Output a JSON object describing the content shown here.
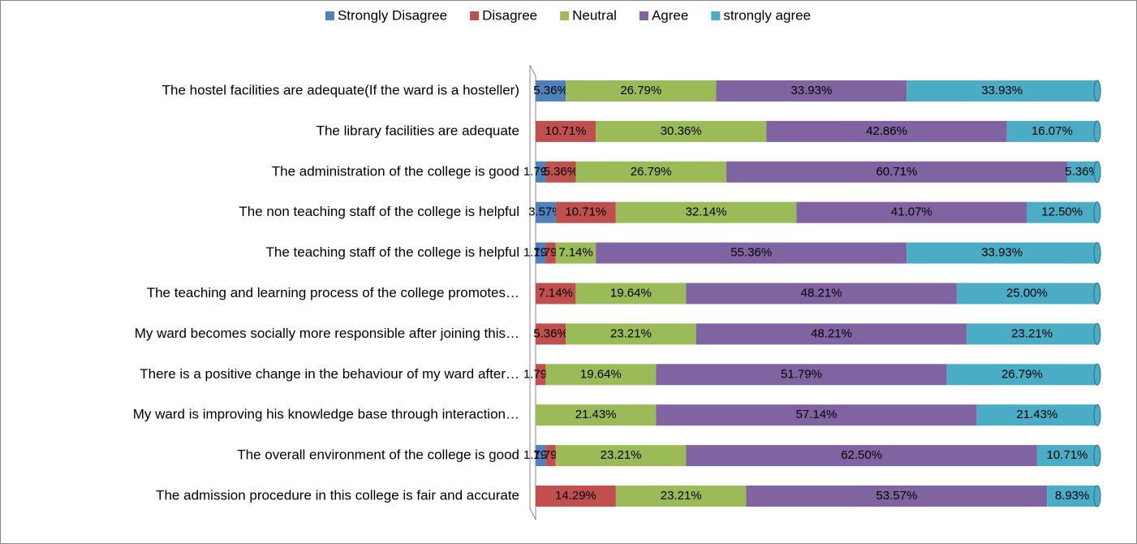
{
  "chart_data": {
    "type": "stacked_barh",
    "categories": [
      "The hostel facilities are adequate(If the ward is a hosteller)",
      "The library facilities are adequate",
      "The administration of the college is good",
      "The non teaching staff of the college is helpful",
      "The teaching staff of the college is helpful",
      "The teaching and learning process of the college promotes…",
      "My ward becomes socially more responsible after joining this…",
      "There is a positive change in the behaviour of my ward after…",
      "My ward is improving his knowledge base through interaction…",
      "The overall environment of the college is good",
      "The admission procedure in this college is fair and accurate"
    ],
    "xlim": [
      0,
      100
    ],
    "legend": "top",
    "series": [
      {
        "name": "Strongly Disagree",
        "color": "#4f81bd",
        "values": [
          5.36,
          null,
          1.79,
          3.57,
          1.79,
          null,
          null,
          null,
          null,
          1.79,
          null
        ],
        "value_labels": [
          "5.36%",
          null,
          "1.79%",
          "3.57%",
          "1.79%",
          null,
          null,
          null,
          null,
          "1.79%",
          null
        ]
      },
      {
        "name": "Disagree",
        "color": "#c0504d",
        "values": [
          null,
          10.71,
          5.36,
          10.71,
          1.79,
          7.14,
          5.36,
          1.79,
          null,
          1.79,
          14.29
        ],
        "value_labels": [
          null,
          "10.71%",
          "5.36%",
          "10.71%",
          "1.79%",
          "7.14%",
          "5.36%",
          "1.79%",
          null,
          "1.79%",
          "14.29%"
        ]
      },
      {
        "name": "Neutral",
        "color": "#9bbb59",
        "values": [
          26.79,
          30.36,
          26.79,
          32.14,
          7.14,
          19.64,
          23.21,
          19.64,
          21.43,
          23.21,
          23.21
        ],
        "value_labels": [
          "26.79%",
          "30.36%",
          "26.79%",
          "32.14%",
          "7.14%",
          "19.64%",
          "23.21%",
          "19.64%",
          "21.43%",
          "23.21%",
          "23.21%"
        ]
      },
      {
        "name": "Agree",
        "color": "#8064a2",
        "values": [
          33.93,
          42.86,
          60.71,
          41.07,
          55.36,
          48.21,
          48.21,
          51.79,
          57.14,
          62.5,
          53.57
        ],
        "value_labels": [
          "33.93%",
          "42.86%",
          "60.71%",
          "41.07%",
          "55.36%",
          "48.21%",
          "48.21%",
          "51.79%",
          "57.14%",
          "62.50%",
          "53.57%"
        ]
      },
      {
        "name": "strongly agree",
        "color": "#4bacc6",
        "values": [
          33.93,
          16.07,
          5.36,
          12.5,
          33.93,
          25.0,
          23.21,
          26.79,
          21.43,
          10.71,
          8.93
        ],
        "value_labels": [
          "33.93%",
          "16.07%",
          "5.36%",
          "12.50%",
          "33.93%",
          "25.00%",
          "23.21%",
          "26.79%",
          "21.43%",
          "10.71%",
          "8.93%"
        ]
      }
    ]
  }
}
